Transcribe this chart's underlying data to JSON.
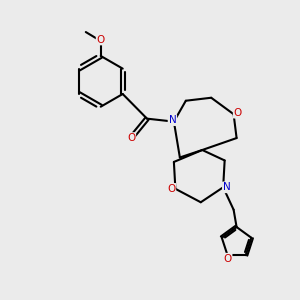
{
  "bg_color": "#ebebeb",
  "bond_color": "#000000",
  "nitrogen_color": "#0000cc",
  "oxygen_color": "#cc0000",
  "line_width": 1.5,
  "dbo": 0.055,
  "xlim": [
    0.0,
    8.5
  ],
  "ylim": [
    0.5,
    10.5
  ]
}
